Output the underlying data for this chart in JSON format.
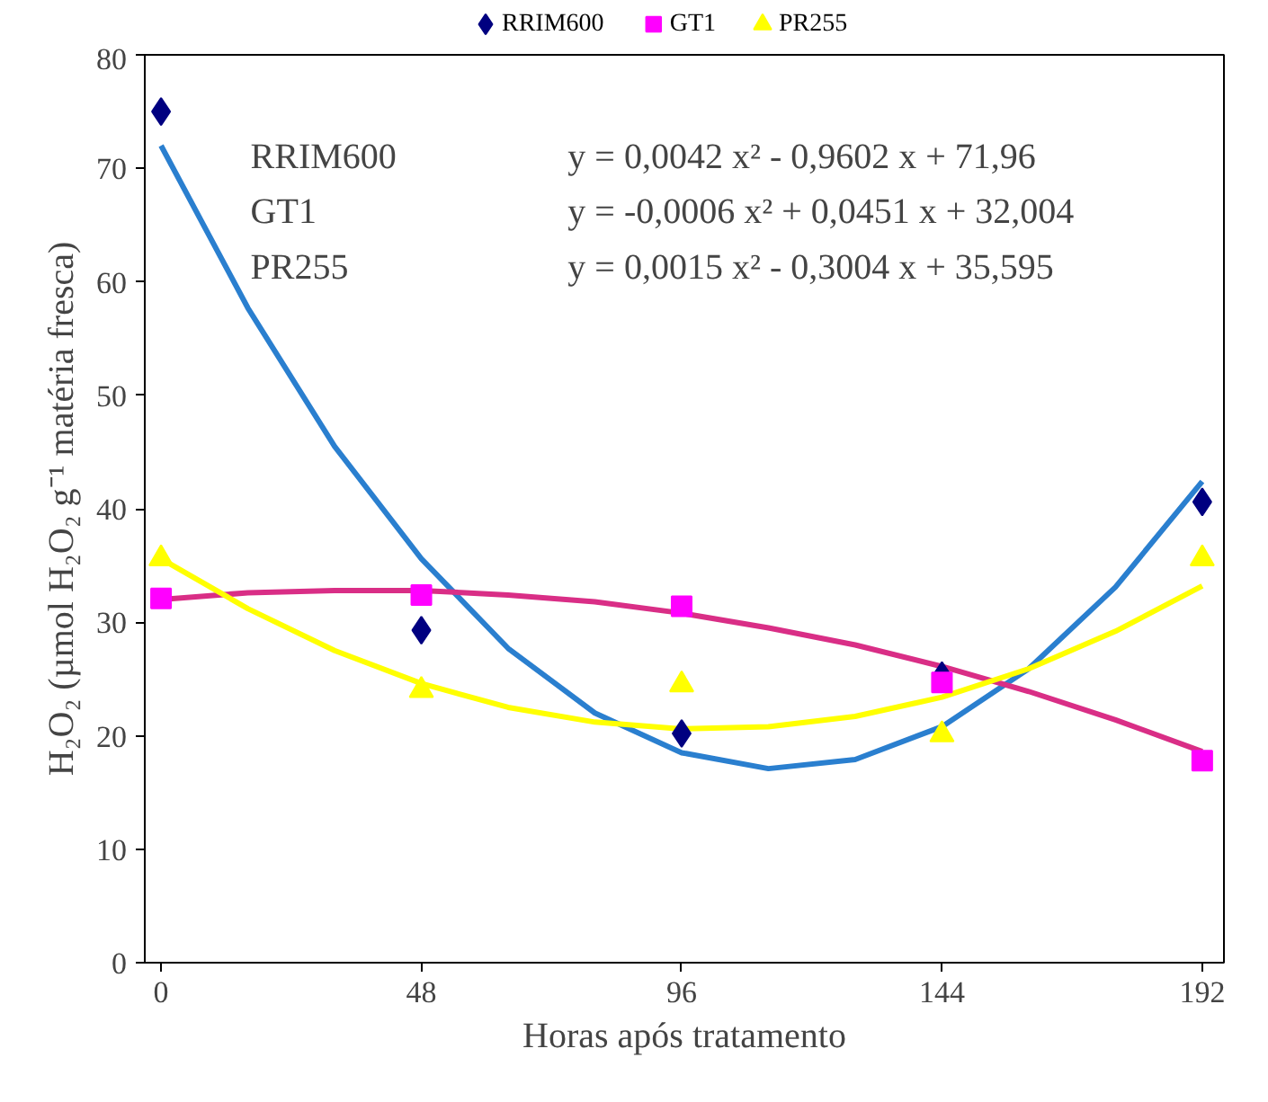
{
  "chart_data": {
    "type": "scatter",
    "xlabel": "Horas após tratamento",
    "ylabel": "H₂O₂ (µmol H₂O₂ g⁻¹ matéria fresca)",
    "xlim": [
      -3,
      196
    ],
    "ylim": [
      0,
      80
    ],
    "xticks": [
      0,
      48,
      96,
      144,
      192
    ],
    "yticks": [
      0,
      10,
      20,
      30,
      40,
      50,
      60,
      70,
      80
    ],
    "grid": false,
    "legend": "top",
    "annotations": [
      "RRIM600",
      "y = 0,0042 x² - 0,9602 x + 71,96",
      "GT1",
      "y = -0,0006 x² + 0,0451 x + 32,004",
      "PR255",
      "y = 0,0015 x² - 0,3004 x + 35,595"
    ],
    "series": [
      {
        "type": "line",
        "color": "#2a7fcf",
        "x": [
          0,
          16,
          32,
          48,
          64,
          80,
          96,
          112,
          128,
          144,
          160,
          176,
          192
        ],
        "values": [
          72.0,
          57.7,
          45.5,
          35.6,
          27.7,
          22.0,
          18.5,
          17.1,
          17.9,
          20.8,
          25.9,
          33.1,
          42.4
        ]
      },
      {
        "type": "line",
        "color": "#d92e86",
        "x": [
          0,
          16,
          32,
          48,
          64,
          80,
          96,
          112,
          128,
          144,
          160,
          176,
          192
        ],
        "values": [
          32.0,
          32.6,
          32.8,
          32.8,
          32.4,
          31.8,
          30.8,
          29.5,
          28.0,
          26.1,
          23.9,
          21.4,
          18.6
        ]
      },
      {
        "type": "line",
        "color": "#ffff00",
        "x": [
          0,
          16,
          32,
          48,
          64,
          80,
          96,
          112,
          128,
          144,
          160,
          176,
          192
        ],
        "values": [
          35.6,
          31.2,
          27.5,
          24.6,
          22.5,
          21.2,
          20.6,
          20.8,
          21.7,
          23.4,
          25.9,
          29.2,
          33.2
        ]
      },
      {
        "name": "RRIM600",
        "color": "#000080",
        "marker": "diamond",
        "x": [
          0,
          48,
          96,
          144,
          192
        ],
        "values": [
          75,
          29.3,
          20.2,
          25.3,
          40.6
        ]
      },
      {
        "name": "GT1",
        "color": "#ff00ff",
        "marker": "square",
        "x": [
          0,
          48,
          96,
          144,
          192
        ],
        "values": [
          32.1,
          32.4,
          31.4,
          24.7,
          17.8
        ]
      },
      {
        "name": "PR255",
        "color": "#ffff00",
        "marker": "triangle",
        "x": [
          0,
          48,
          96,
          144,
          192
        ],
        "values": [
          35.6,
          24.0,
          24.5,
          20.1,
          35.6
        ]
      }
    ]
  }
}
